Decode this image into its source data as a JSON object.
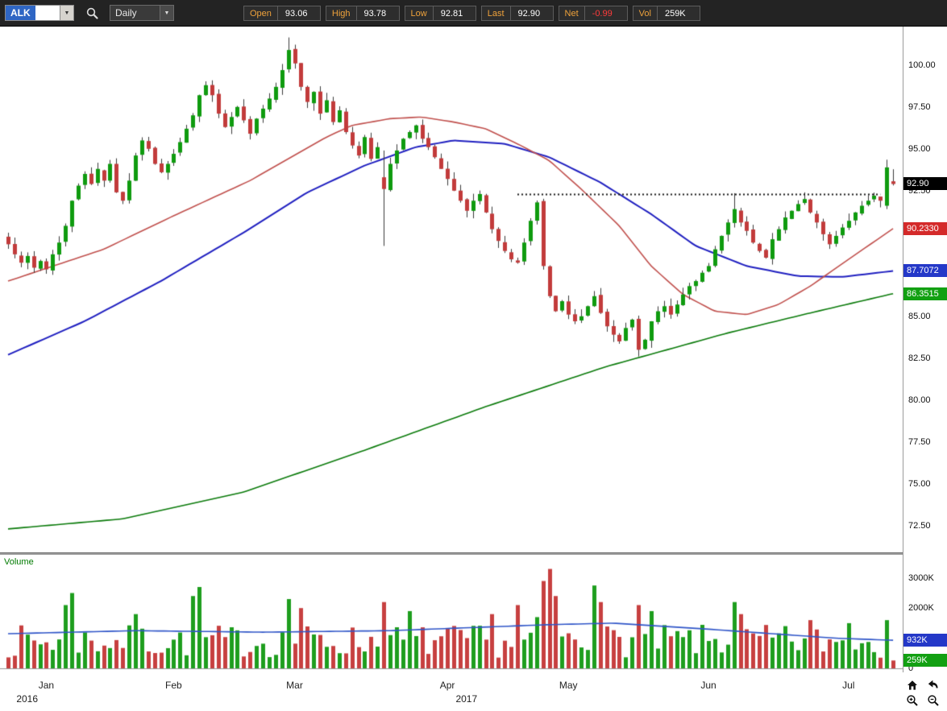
{
  "toolbar": {
    "symbol": "ALK",
    "timeframe": "Daily",
    "fields": [
      {
        "label": "Open",
        "value": "93.06",
        "value_color": "#FFFFFF"
      },
      {
        "label": "High",
        "value": "93.78",
        "value_color": "#FFFFFF"
      },
      {
        "label": "Low",
        "value": "92.81",
        "value_color": "#FFFFFF"
      },
      {
        "label": "Last",
        "value": "92.90",
        "value_color": "#FFFFFF"
      },
      {
        "label": "Net",
        "value": "-0.99",
        "value_color": "#FF3B3B"
      },
      {
        "label": "Vol",
        "value": "259K",
        "value_color": "#FFFFFF"
      }
    ],
    "icons": {
      "search": "magnifier",
      "dropdown_arrow": "▼"
    }
  },
  "volume_pane": {
    "title": "Volume",
    "title_color": "#007a00"
  },
  "price_axis": {
    "ticks": [
      {
        "label": "100.00",
        "price": 100.0
      },
      {
        "label": "97.50",
        "price": 97.5
      },
      {
        "label": "95.00",
        "price": 95.0
      },
      {
        "label": "92.50",
        "price": 92.5
      },
      {
        "label": "90.00",
        "price": 90.0
      },
      {
        "label": "87.50",
        "price": 87.5
      },
      {
        "label": "85.00",
        "price": 85.0
      },
      {
        "label": "82.50",
        "price": 82.5
      },
      {
        "label": "80.00",
        "price": 80.0
      },
      {
        "label": "77.50",
        "price": 77.5
      },
      {
        "label": "75.00",
        "price": 75.0
      },
      {
        "label": "72.50",
        "price": 72.5
      }
    ],
    "markers": [
      {
        "name": "last-price",
        "label": "92.90",
        "price": 92.9,
        "bg": "#000000",
        "fg": "#FFFFFF"
      },
      {
        "name": "ma-fast-value",
        "label": "90.2330",
        "price": 90.233,
        "bg": "#D42A2A",
        "fg": "#FFFFFF"
      },
      {
        "name": "ma-mid-value",
        "label": "87.7072",
        "price": 87.7072,
        "bg": "#2438C8",
        "fg": "#FFFFFF"
      },
      {
        "name": "ma-slow-value",
        "label": "86.3515",
        "price": 86.3515,
        "bg": "#12A012",
        "fg": "#FFFFFF"
      }
    ]
  },
  "volume_axis": {
    "ticks": [
      {
        "label": "3000K",
        "k": 3000
      },
      {
        "label": "2000K",
        "k": 2000
      },
      {
        "label": "1000K",
        "k": 1000
      },
      {
        "label": "0",
        "k": 0
      }
    ],
    "markers": [
      {
        "name": "volume-ma-value",
        "label": "932K",
        "k": 932,
        "bg": "#2438C8",
        "fg": "#FFFFFF"
      },
      {
        "name": "last-volume",
        "label": "259K",
        "k": 259,
        "bg": "#12A012",
        "fg": "#FFFFFF"
      }
    ],
    "axis_max_k": 3770
  },
  "x_axis": {
    "months": [
      {
        "label": "Jan",
        "i": 6
      },
      {
        "label": "Feb",
        "i": 26
      },
      {
        "label": "Mar",
        "i": 45
      },
      {
        "label": "Apr",
        "i": 69
      },
      {
        "label": "May",
        "i": 88
      },
      {
        "label": "Jun",
        "i": 110
      },
      {
        "label": "Jul",
        "i": 132
      }
    ],
    "years": [
      {
        "label": "2016",
        "i": 3
      },
      {
        "label": "2017",
        "i": 72
      }
    ]
  },
  "nav": {
    "buttons": [
      {
        "name": "home",
        "icon": "house"
      },
      {
        "name": "undo",
        "icon": "curved-arrow-left"
      },
      {
        "name": "zoom-in",
        "icon": "magnifier-plus"
      },
      {
        "name": "zoom-out",
        "icon": "magnifier-minus"
      }
    ]
  },
  "chart_data": {
    "type": "candlestick",
    "symbol": "ALK",
    "timeframe": "Daily",
    "date_range": "Dec 2016 - Jul 2017",
    "last_bar": {
      "open": 93.06,
      "high": 93.78,
      "low": 92.81,
      "close": 92.9,
      "net": -0.99,
      "volume_k": 259
    },
    "price_scale": {
      "max": 102.3,
      "min": 70.9,
      "tick_step": 2.5
    },
    "grid": "off",
    "closes": [
      89.3,
      88.7,
      88.2,
      88.6,
      87.9,
      88.3,
      87.8,
      88.7,
      89.4,
      90.4,
      91.9,
      92.8,
      93.5,
      92.9,
      93.8,
      93.1,
      94.1,
      92.4,
      91.9,
      93.1,
      94.6,
      95.5,
      95.0,
      94.1,
      93.6,
      94.1,
      94.7,
      95.4,
      96.2,
      97.0,
      98.2,
      98.8,
      98.2,
      97.1,
      96.3,
      96.9,
      97.5,
      96.7,
      95.9,
      96.8,
      97.4,
      98.0,
      98.7,
      99.7,
      100.9,
      100.1,
      98.7,
      97.8,
      98.4,
      97.1,
      97.9,
      96.6,
      97.3,
      96.0,
      95.2,
      94.6,
      95.7,
      94.4,
      95.1,
      92.6,
      94.1,
      94.9,
      95.6,
      96.0,
      96.4,
      95.6,
      95.1,
      94.5,
      93.8,
      93.2,
      92.5,
      91.9,
      91.3,
      91.9,
      92.3,
      91.2,
      90.2,
      89.5,
      88.9,
      88.4,
      88.2,
      89.4,
      90.7,
      91.8,
      88.0,
      86.2,
      85.3,
      85.9,
      85.1,
      84.7,
      85.0,
      85.6,
      86.2,
      85.2,
      84.4,
      83.9,
      83.5,
      84.3,
      84.8,
      83.0,
      83.6,
      84.7,
      85.3,
      85.6,
      85.1,
      85.7,
      86.3,
      86.8,
      87.1,
      87.6,
      88.0,
      89.0,
      89.8,
      90.6,
      91.4,
      90.6,
      90.1,
      89.4,
      88.9,
      88.5,
      89.6,
      90.2,
      90.9,
      91.3,
      91.7,
      92.0,
      91.2,
      90.6,
      89.9,
      89.3,
      89.8,
      90.3,
      90.7,
      91.2,
      91.6,
      91.9,
      92.2,
      91.9,
      93.89,
      92.9
    ],
    "candle_overrides": {
      "44": {
        "h": 101.65
      },
      "59": {
        "o": 93.3,
        "h": 94.9,
        "l": 89.2,
        "c": 92.6
      },
      "99": {
        "l": 82.6
      },
      "114": {
        "h": 92.35
      },
      "125": {
        "h": 92.4
      },
      "138": {
        "o": 91.6,
        "h": 94.35,
        "l": 91.4,
        "c": 93.89
      },
      "139": {
        "o": 93.06,
        "h": 93.78,
        "l": 92.81,
        "c": 92.9
      }
    },
    "wick_amp": 0.45,
    "open_jitter": 0.18,
    "seed": 11,
    "colors": {
      "up": "#0F9B0F",
      "down": "#C23B3B",
      "wick": "#3A3A3A"
    },
    "moving_averages": [
      {
        "name": "ma-fast",
        "color": "#C0504D",
        "width": 1.6,
        "current": 90.233,
        "keypoints": [
          [
            0,
            87.1
          ],
          [
            15,
            89.0
          ],
          [
            26,
            91.0
          ],
          [
            38,
            93.1
          ],
          [
            50,
            95.7
          ],
          [
            54,
            96.4
          ],
          [
            60,
            96.8
          ],
          [
            65,
            96.9
          ],
          [
            70,
            96.6
          ],
          [
            75,
            96.2
          ],
          [
            80,
            95.3
          ],
          [
            85,
            94.3
          ],
          [
            90,
            92.6
          ],
          [
            96,
            90.4
          ],
          [
            101,
            88.0
          ],
          [
            106,
            86.3
          ],
          [
            111,
            85.3
          ],
          [
            116,
            85.1
          ],
          [
            121,
            85.7
          ],
          [
            126,
            86.8
          ],
          [
            132,
            88.4
          ],
          [
            139,
            90.233
          ]
        ]
      },
      {
        "name": "ma-mid",
        "color": "#2020C0",
        "width": 2.0,
        "current": 87.7072,
        "keypoints": [
          [
            0,
            82.7
          ],
          [
            12,
            84.7
          ],
          [
            24,
            87.1
          ],
          [
            37,
            90.0
          ],
          [
            47,
            92.4
          ],
          [
            56,
            94.0
          ],
          [
            64,
            95.1
          ],
          [
            70,
            95.5
          ],
          [
            78,
            95.3
          ],
          [
            85,
            94.5
          ],
          [
            93,
            93.0
          ],
          [
            101,
            91.1
          ],
          [
            108,
            89.2
          ],
          [
            116,
            88.0
          ],
          [
            124,
            87.4
          ],
          [
            131,
            87.35
          ],
          [
            139,
            87.707
          ]
        ]
      },
      {
        "name": "ma-slow",
        "color": "#0A7A0A",
        "width": 1.6,
        "current": 86.3515,
        "keypoints": [
          [
            0,
            72.3
          ],
          [
            18,
            72.9
          ],
          [
            37,
            74.5
          ],
          [
            56,
            77.0
          ],
          [
            75,
            79.6
          ],
          [
            94,
            82.0
          ],
          [
            113,
            84.0
          ],
          [
            126,
            85.2
          ],
          [
            139,
            86.3515
          ]
        ]
      }
    ],
    "resistance_line": {
      "price": 92.3,
      "from": 80,
      "to": 137,
      "style": "dotted",
      "color": "#1A1A1A"
    },
    "volume": {
      "base_k": 900,
      "noise_k": 550,
      "min_k": 260,
      "seed": 7,
      "spikes": {
        "9": 2100,
        "10": 2500,
        "20": 1800,
        "29": 2400,
        "30": 2700,
        "44": 2300,
        "46": 2000,
        "59": 2200,
        "63": 1900,
        "76": 1800,
        "80": 2100,
        "83": 1700,
        "84": 2900,
        "85": 3300,
        "86": 2400,
        "92": 2750,
        "93": 2200,
        "99": 2100,
        "101": 1900,
        "114": 2200,
        "115": 1800,
        "126": 1600,
        "132": 1500,
        "138": 1600,
        "139": 259
      },
      "ma_keypoints": [
        [
          0,
          1150
        ],
        [
          20,
          1250
        ],
        [
          40,
          1200
        ],
        [
          60,
          1250
        ],
        [
          85,
          1450
        ],
        [
          95,
          1500
        ],
        [
          110,
          1300
        ],
        [
          120,
          1150
        ],
        [
          130,
          1000
        ],
        [
          139,
          932
        ]
      ],
      "ma_color": "#2F55C8",
      "up_color": "#1E9E1E",
      "down_color": "#C74040"
    }
  }
}
